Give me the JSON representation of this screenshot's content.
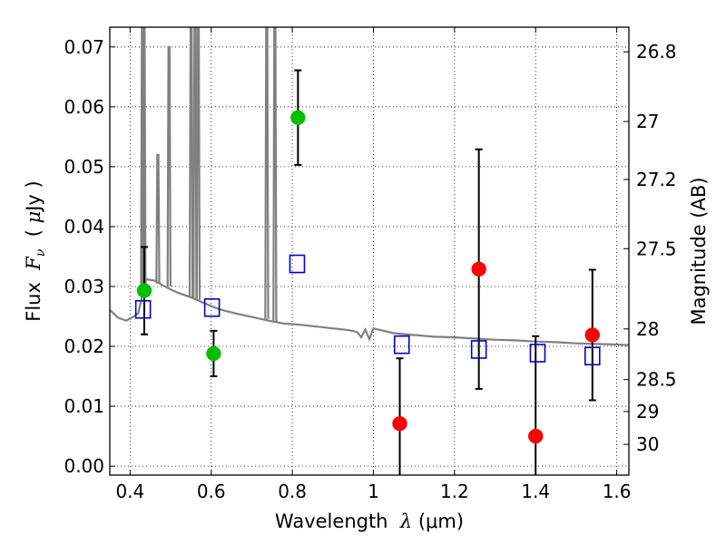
{
  "chart_data": {
    "type": "scatter",
    "title": "",
    "xlabel": "Wavelength  λ (μm)",
    "xlabel_parts": {
      "prefix": "Wavelength  ",
      "symbol": "λ",
      "suffix": " (μm)"
    },
    "ylabel": "Flux  Fν  ( μJy )",
    "ylabel_parts": {
      "prefix": "Flux  ",
      "symbol": "F",
      "subscript": "ν",
      "open": "  ( ",
      "unit_symbol": "μ",
      "unit": "Jy )"
    },
    "y2label": "Magnitude (AB)",
    "xlim": [
      0.35,
      1.63
    ],
    "ylim": [
      -0.0015,
      0.0733
    ],
    "grid": true,
    "x_ticks": [
      0.4,
      0.6,
      0.8,
      1.0,
      1.2,
      1.4,
      1.6
    ],
    "x_tick_labels": [
      "0.4",
      "0.6",
      "0.8",
      "1",
      "1.2",
      "1.4",
      "1.6"
    ],
    "y_ticks": [
      0.0,
      0.01,
      0.02,
      0.03,
      0.04,
      0.05,
      0.06,
      0.07
    ],
    "y_tick_labels": [
      "0.00",
      "0.01",
      "0.02",
      "0.03",
      "0.04",
      "0.05",
      "0.06",
      "0.07"
    ],
    "y2_ticks": [
      26.8,
      27.0,
      27.2,
      27.5,
      28.0,
      28.5,
      29.0,
      30.0
    ],
    "y2_tick_labels": [
      "26.8",
      "27",
      "27.2",
      "27.5",
      "28",
      "28.5",
      "29",
      "30"
    ],
    "series": [
      {
        "kind": "detections",
        "color": "#00bf00",
        "marker": "circle",
        "points": [
          {
            "x": 0.435,
            "y": 0.0293,
            "err": 0.0073
          },
          {
            "x": 0.606,
            "y": 0.0188,
            "err": 0.0038
          },
          {
            "x": 0.814,
            "y": 0.0582,
            "err": 0.0079
          }
        ]
      },
      {
        "kind": "detections",
        "color": "#ff0000",
        "marker": "circle",
        "points": [
          {
            "x": 1.065,
            "y": 0.0071,
            "err": 0.0109
          },
          {
            "x": 1.26,
            "y": 0.0329,
            "err": 0.02
          },
          {
            "x": 1.4,
            "y": 0.005,
            "err": 0.0167
          },
          {
            "x": 1.54,
            "y": 0.0219,
            "err": 0.0109
          }
        ]
      },
      {
        "kind": "model-photometry",
        "color": "#0000cc",
        "marker": "open-square",
        "points": [
          {
            "x": 0.432,
            "y": 0.0261
          },
          {
            "x": 0.602,
            "y": 0.0264
          },
          {
            "x": 0.812,
            "y": 0.0337
          },
          {
            "x": 1.07,
            "y": 0.0202
          },
          {
            "x": 1.26,
            "y": 0.0194
          },
          {
            "x": 1.405,
            "y": 0.0188
          },
          {
            "x": 1.54,
            "y": 0.0183
          }
        ]
      }
    ],
    "template_spectrum": {
      "color": "#808080",
      "continuum": [
        [
          0.35,
          0.0261
        ],
        [
          0.37,
          0.0248
        ],
        [
          0.39,
          0.0243
        ],
        [
          0.405,
          0.0248
        ],
        [
          0.42,
          0.0255
        ],
        [
          0.43,
          0.0285
        ],
        [
          0.44,
          0.0312
        ],
        [
          0.46,
          0.031
        ],
        [
          0.48,
          0.0302
        ],
        [
          0.5,
          0.0295
        ],
        [
          0.52,
          0.0289
        ],
        [
          0.55,
          0.0282
        ],
        [
          0.58,
          0.0273
        ],
        [
          0.62,
          0.0262
        ],
        [
          0.66,
          0.0255
        ],
        [
          0.7,
          0.0249
        ],
        [
          0.74,
          0.0243
        ],
        [
          0.78,
          0.0238
        ],
        [
          0.82,
          0.0236
        ],
        [
          0.86,
          0.0233
        ],
        [
          0.9,
          0.023
        ],
        [
          0.94,
          0.0227
        ],
        [
          0.96,
          0.0224
        ],
        [
          0.97,
          0.0215
        ],
        [
          0.98,
          0.0228
        ],
        [
          0.99,
          0.0212
        ],
        [
          1.0,
          0.023
        ],
        [
          1.05,
          0.0222
        ],
        [
          1.1,
          0.0219
        ],
        [
          1.15,
          0.0216
        ],
        [
          1.2,
          0.0215
        ],
        [
          1.25,
          0.0213
        ],
        [
          1.3,
          0.0211
        ],
        [
          1.35,
          0.021
        ],
        [
          1.4,
          0.0208
        ],
        [
          1.45,
          0.0207
        ],
        [
          1.5,
          0.0205
        ],
        [
          1.55,
          0.0204
        ],
        [
          1.6,
          0.0203
        ],
        [
          1.63,
          0.0202
        ]
      ],
      "emission_lines": [
        {
          "x": 0.4305,
          "peak": 0.074,
          "base": 0.0285
        },
        {
          "x": 0.4345,
          "peak": 0.074,
          "base": 0.029
        },
        {
          "x": 0.4685,
          "peak": 0.052,
          "base": 0.0305
        },
        {
          "x": 0.496,
          "peak": 0.07,
          "base": 0.03
        },
        {
          "x": 0.5505,
          "peak": 0.074,
          "base": 0.0282
        },
        {
          "x": 0.56,
          "peak": 0.074,
          "base": 0.028
        },
        {
          "x": 0.568,
          "peak": 0.074,
          "base": 0.0278
        },
        {
          "x": 0.737,
          "peak": 0.074,
          "base": 0.0245
        },
        {
          "x": 0.757,
          "peak": 0.074,
          "base": 0.024
        }
      ]
    }
  }
}
